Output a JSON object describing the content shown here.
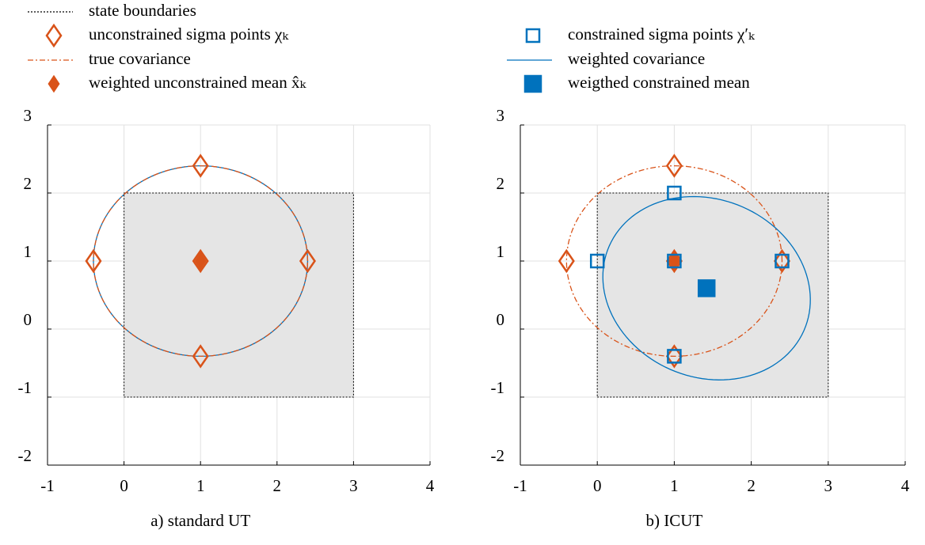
{
  "chart_data": [
    {
      "type": "scatter",
      "title": "a) standard UT",
      "xlim": [
        -1,
        4
      ],
      "ylim": [
        -2,
        3
      ],
      "xticks": [
        -1,
        0,
        1,
        2,
        3,
        4
      ],
      "yticks": [
        -2,
        -1,
        0,
        1,
        2,
        3
      ],
      "grid": true,
      "series": [
        {
          "kind": "boundary",
          "color": "#000000",
          "fill": "#e5e5e5",
          "dash": "dotted",
          "x": [
            0,
            3,
            3,
            0,
            0
          ],
          "y": [
            -1,
            -1,
            2,
            2,
            -1
          ]
        },
        {
          "kind": "ellipse",
          "color": "#0072bd",
          "dash": "solid",
          "center_x": 1,
          "center_y": 1,
          "rx": 1.4,
          "ry": 1.4,
          "angle": 0
        },
        {
          "kind": "ellipse",
          "color": "#d95319",
          "dash": "dashdot",
          "center_x": 1,
          "center_y": 1,
          "rx": 1.4,
          "ry": 1.4,
          "angle": 0
        },
        {
          "kind": "markers",
          "color": "#d95319",
          "marker": "diamond",
          "filled": false,
          "x": [
            1,
            -0.4,
            2.4,
            1,
            1
          ],
          "y": [
            1,
            1,
            1,
            2.4,
            -0.4
          ]
        },
        {
          "kind": "markers",
          "color": "#d95319",
          "marker": "diamond",
          "filled": true,
          "x": [
            1
          ],
          "y": [
            1
          ]
        }
      ]
    },
    {
      "type": "scatter",
      "title": "b) ICUT",
      "xlim": [
        -1,
        4
      ],
      "ylim": [
        -2,
        3
      ],
      "xticks": [
        -1,
        0,
        1,
        2,
        3,
        4
      ],
      "yticks": [
        -2,
        -1,
        0,
        1,
        2,
        3
      ],
      "grid": true,
      "series": [
        {
          "name": "state boundaries",
          "kind": "boundary",
          "color": "#000000",
          "fill": "#e5e5e5",
          "dash": "dotted",
          "x": [
            0,
            3,
            3,
            0,
            0
          ],
          "y": [
            -1,
            -1,
            2,
            2,
            -1
          ]
        },
        {
          "name": "unconstrained sigma points χₖ",
          "kind": "markers",
          "color": "#d95319",
          "marker": "diamond",
          "filled": false,
          "x": [
            1,
            -0.4,
            2.4,
            1,
            1
          ],
          "y": [
            1,
            1,
            1,
            2.4,
            -0.4
          ]
        },
        {
          "name": "true covariance",
          "kind": "ellipse",
          "color": "#d95319",
          "dash": "dashdot",
          "center_x": 1,
          "center_y": 1,
          "rx": 1.4,
          "ry": 1.4,
          "angle": 0
        },
        {
          "name": "weighted unconstrained mean x̂ₖ",
          "kind": "markers",
          "color": "#d95319",
          "marker": "diamond",
          "filled": true,
          "x": [
            1
          ],
          "y": [
            1
          ]
        },
        {
          "name": "constrained sigma points χ′ₖ",
          "kind": "markers",
          "color": "#0072bd",
          "marker": "square",
          "filled": false,
          "x": [
            1,
            0,
            2.4,
            1,
            1
          ],
          "y": [
            1,
            1,
            1,
            2,
            -0.4
          ]
        },
        {
          "name": "weighted covariance",
          "kind": "ellipse",
          "color": "#0072bd",
          "dash": "solid",
          "center_x": 1.42,
          "center_y": 0.6,
          "rx": 1.43,
          "ry": 1.26,
          "angle": -45
        },
        {
          "name": "weigthed constrained mean",
          "kind": "markers",
          "color": "#0072bd",
          "marker": "square",
          "filled": true,
          "x": [
            1.42
          ],
          "y": [
            0.6
          ]
        }
      ]
    }
  ]
}
